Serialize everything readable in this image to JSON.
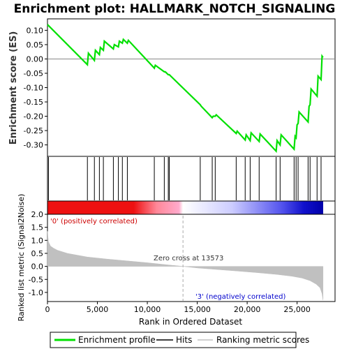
{
  "chart_data": {
    "type": "line",
    "title": "Enrichment plot: HALLMARK_NOTCH_SIGNALING",
    "top_panel": {
      "ylabel": "Enrichment score (ES)",
      "ylim": [
        -0.34,
        0.14
      ],
      "yticks": [
        0.1,
        0.05,
        0.0,
        -0.05,
        -0.1,
        -0.15,
        -0.2,
        -0.25,
        -0.3
      ],
      "ytick_labels": [
        "0.10",
        "0.05",
        "0.00",
        "-0.05",
        "-0.10",
        "-0.15",
        "-0.20",
        "-0.25",
        "-0.30"
      ],
      "series": [
        {
          "name": "Enrichment profile",
          "color": "#00e000",
          "x": [
            0,
            4000,
            4100,
            4700,
            4800,
            5200,
            5300,
            5600,
            5700,
            6600,
            6700,
            7100,
            7200,
            7500,
            7600,
            8000,
            8100,
            10700,
            10800,
            11700,
            11800,
            12100,
            12200,
            15300,
            15400,
            16500,
            16600,
            16800,
            16900,
            18900,
            19000,
            19800,
            19900,
            20300,
            20400,
            21200,
            21300,
            22900,
            23000,
            23300,
            23400,
            24700,
            24800,
            24900,
            25000,
            25100,
            25200,
            26100,
            26200,
            26300,
            26400,
            27000,
            27100,
            27400,
            27500,
            27600
          ],
          "y": [
            0.12,
            -0.02,
            0.02,
            -0.005,
            0.03,
            0.015,
            0.04,
            0.03,
            0.062,
            0.035,
            0.05,
            0.042,
            0.062,
            0.055,
            0.068,
            0.055,
            0.065,
            -0.032,
            -0.022,
            -0.045,
            -0.045,
            -0.055,
            -0.055,
            -0.16,
            -0.165,
            -0.205,
            -0.2,
            -0.2,
            -0.195,
            -0.26,
            -0.252,
            -0.283,
            -0.265,
            -0.285,
            -0.258,
            -0.288,
            -0.262,
            -0.322,
            -0.285,
            -0.3,
            -0.265,
            -0.315,
            -0.27,
            -0.275,
            -0.23,
            -0.225,
            -0.185,
            -0.22,
            -0.165,
            -0.16,
            -0.105,
            -0.13,
            -0.06,
            -0.072,
            0.01,
            0.005
          ]
        }
      ]
    },
    "hits_panel": {
      "legend_label": "Hits",
      "hit_positions": [
        100,
        4000,
        4700,
        5200,
        5600,
        6600,
        7100,
        7500,
        8000,
        10700,
        11700,
        12100,
        12200,
        15300,
        16500,
        16800,
        18900,
        19800,
        20300,
        21200,
        22900,
        23300,
        24700,
        24900,
        25100,
        26100,
        26300,
        27000,
        27400
      ]
    },
    "colorbar": {
      "label_positive": "'0' (positively correlated)",
      "label_negative": "'3' (negatively correlated)",
      "colors": {
        "positive_strong": "#ee1111",
        "positive_weak": "#ffaacc",
        "neutral": "#ffffff",
        "negative_weak": "#ccccff",
        "negative_strong": "#1111cc"
      }
    },
    "bottom_panel": {
      "ylabel": "Ranked list metric (Signal2Noise)",
      "xlabel": "Rank in Ordered Dataset",
      "ylim": [
        -1.35,
        2.0
      ],
      "yticks": [
        2.0,
        1.5,
        1.0,
        0.5,
        0.0,
        -0.5,
        -1.0
      ],
      "ytick_labels": [
        "2.0",
        "1.5",
        "1.0",
        "0.5",
        "0.0",
        "-0.5",
        "-1.0"
      ],
      "xlim": [
        0,
        28800
      ],
      "xticks": [
        0,
        5000,
        10000,
        15000,
        20000,
        25000
      ],
      "xtick_labels": [
        "0",
        "5,000",
        "10,000",
        "15,000",
        "20,000",
        "25,000"
      ],
      "zero_cross_label": "Zero cross at 13573",
      "zero_cross": 13573,
      "total_genes": 27600,
      "metric_color": "#c0c0c0",
      "metric_profile": {
        "rank": [
          0,
          100,
          300,
          600,
          1000,
          2000,
          4000,
          6000,
          8000,
          10000,
          12000,
          13573,
          15000,
          17000,
          19000,
          21000,
          23000,
          24500,
          25500,
          26300,
          26900,
          27300,
          27500,
          27600
        ],
        "value": [
          1.35,
          0.95,
          0.78,
          0.7,
          0.62,
          0.5,
          0.36,
          0.28,
          0.21,
          0.14,
          0.06,
          0.0,
          -0.06,
          -0.12,
          -0.18,
          -0.24,
          -0.31,
          -0.38,
          -0.45,
          -0.55,
          -0.68,
          -0.82,
          -1.05,
          -1.3
        ]
      }
    },
    "legend": [
      {
        "label": "Enrichment profile",
        "color": "#00e000"
      },
      {
        "label": "Hits",
        "color": "#000000"
      },
      {
        "label": "Ranking metric scores",
        "color": "#c0c0c0"
      }
    ]
  }
}
